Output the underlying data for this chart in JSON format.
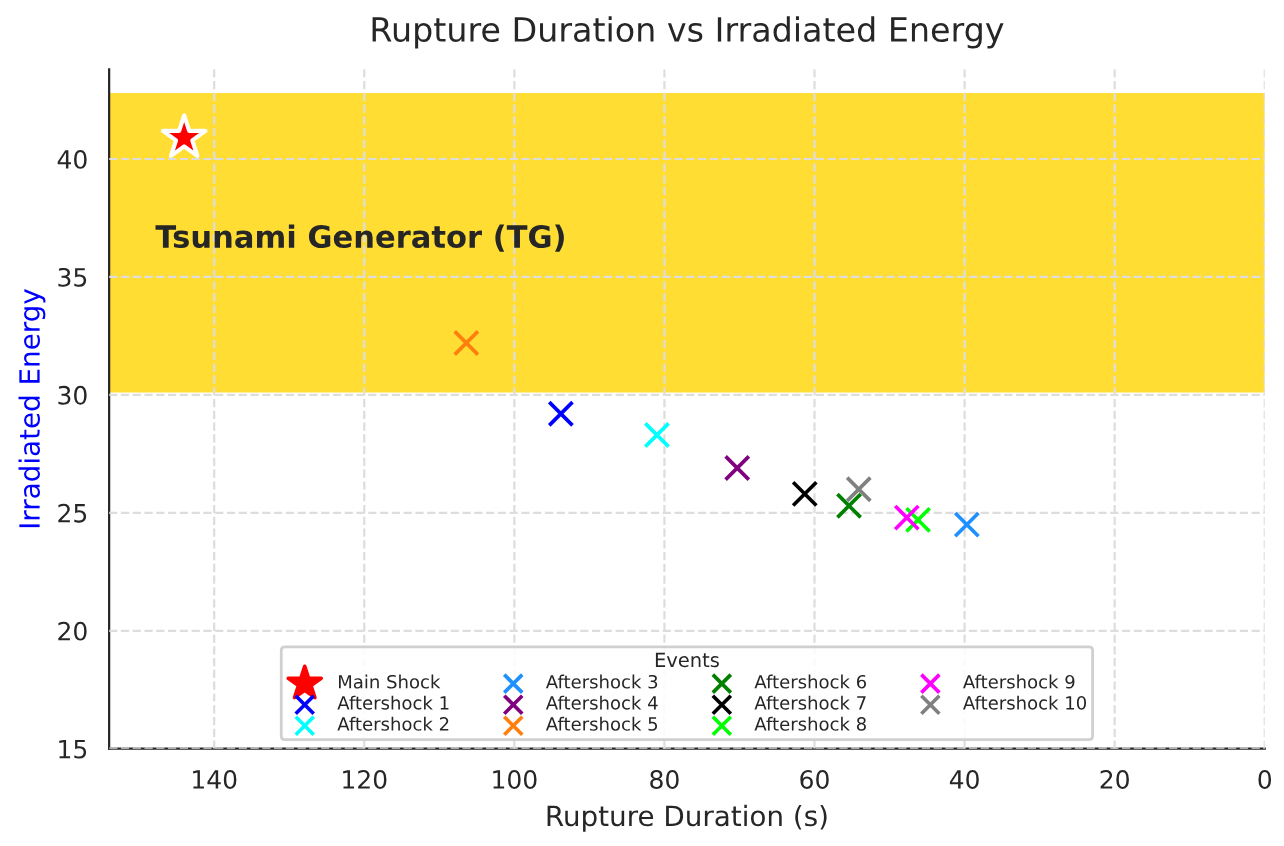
{
  "chart_data": {
    "type": "scatter",
    "title": "Rupture Duration vs Irradiated Energy",
    "xlabel": "Rupture Duration (s)",
    "ylabel": "Irradiated Energy",
    "legend_title": "Events",
    "xlim": [
      154,
      0
    ],
    "xticks": [
      140,
      120,
      100,
      80,
      60,
      40,
      20,
      0
    ],
    "ylim": [
      15,
      43.8
    ],
    "yticks": [
      15,
      20,
      25,
      30,
      35,
      40
    ],
    "grid": true,
    "legend": "bottom",
    "bands": [
      {
        "axis": "y",
        "from": 30.1,
        "to": 42.8,
        "color": "#ffdd33",
        "label": "Tsunami Generator (TG)"
      }
    ],
    "series": [
      {
        "name": "Main Shock",
        "color": "#ff0000",
        "marker": "star",
        "x": [
          144
        ],
        "values": [
          40.9
        ]
      },
      {
        "name": "Aftershock 1",
        "color": "#0000ff",
        "marker": "cross",
        "x": [
          93.8
        ],
        "values": [
          29.2
        ]
      },
      {
        "name": "Aftershock 2",
        "color": "#00ffff",
        "marker": "cross",
        "x": [
          81
        ],
        "values": [
          28.3
        ]
      },
      {
        "name": "Aftershock 3",
        "color": "#1e90ff",
        "marker": "cross",
        "x": [
          39.7
        ],
        "values": [
          24.5
        ]
      },
      {
        "name": "Aftershock 4",
        "color": "#800080",
        "marker": "cross",
        "x": [
          70.3
        ],
        "values": [
          26.9
        ]
      },
      {
        "name": "Aftershock 5",
        "color": "#ff7f0e",
        "marker": "cross",
        "x": [
          106.4
        ],
        "values": [
          32.2
        ]
      },
      {
        "name": "Aftershock 6",
        "color": "#008000",
        "marker": "cross",
        "x": [
          55.4
        ],
        "values": [
          25.3
        ]
      },
      {
        "name": "Aftershock 7",
        "color": "#000000",
        "marker": "cross",
        "x": [
          61.3
        ],
        "values": [
          25.8
        ]
      },
      {
        "name": "Aftershock 8",
        "color": "#00ff00",
        "marker": "cross",
        "x": [
          46.2
        ],
        "values": [
          24.7
        ]
      },
      {
        "name": "Aftershock 9",
        "color": "#ff00ff",
        "marker": "cross",
        "x": [
          47.7
        ],
        "values": [
          24.8
        ]
      },
      {
        "name": "Aftershock 10",
        "color": "#808080",
        "marker": "cross",
        "x": [
          54.1
        ],
        "values": [
          26.0
        ]
      }
    ]
  }
}
